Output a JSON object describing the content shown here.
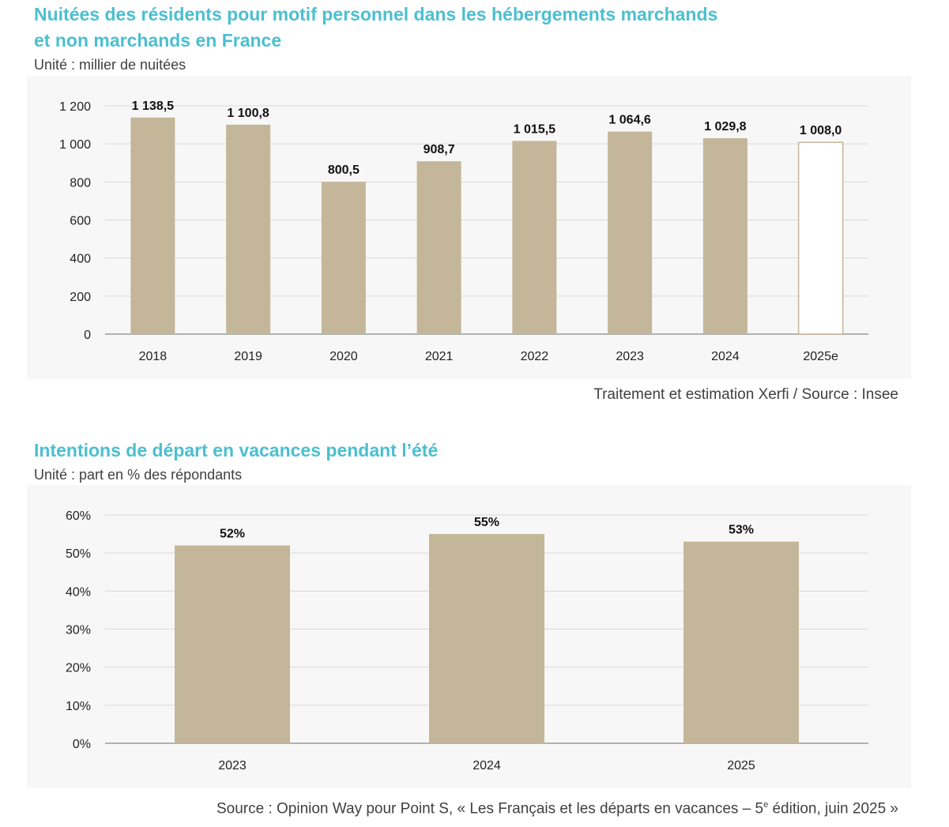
{
  "chart1": {
    "title_line1": "Nuitées des résidents pour motif personnel dans les hébergements marchands",
    "title_line2": "et non marchands en France",
    "unit": "Unité : millier de nuitées",
    "source": "Traitement et estimation Xerfi / Source : Insee"
  },
  "chart2": {
    "title": "Intentions de départ en vacances pendant l’été",
    "unit": "Unité : part en % des répondants",
    "source_before": "Source : Opinion Way pour Point S, « Les Français et les départs en vacances – 5",
    "source_sup": "e",
    "source_after": " édition, juin 2025 »"
  },
  "colors": {
    "title": "#4bbfd0",
    "bar": "#c4b698",
    "estimate_fill": "#ffffff",
    "grid": "#d9d9d9",
    "panel_bg": "#f7f7f7"
  },
  "chart_data": [
    {
      "type": "bar",
      "categories": [
        "2018",
        "2019",
        "2020",
        "2021",
        "2022",
        "2023",
        "2024",
        "2025e"
      ],
      "values": [
        1138.5,
        1100.8,
        800.5,
        908.7,
        1015.5,
        1064.6,
        1029.8,
        1008.0
      ],
      "data_labels": [
        "1 138,5",
        "1 100,8",
        "800,5",
        "908,7",
        "1 015,5",
        "1 064,6",
        "1 029,8",
        "1 008,0"
      ],
      "estimate_flags": [
        false,
        false,
        false,
        false,
        false,
        false,
        false,
        true
      ],
      "y_ticks": [
        0,
        200,
        400,
        600,
        800,
        1000,
        1200
      ],
      "y_tick_labels": [
        "0",
        "200",
        "400",
        "600",
        "800",
        "1 000",
        "1 200"
      ],
      "ylim": [
        0,
        1200
      ],
      "grid": true,
      "legend": "none"
    },
    {
      "type": "bar",
      "categories": [
        "2023",
        "2024",
        "2025"
      ],
      "values": [
        52,
        55,
        53
      ],
      "data_labels": [
        "52%",
        "55%",
        "53%"
      ],
      "y_ticks": [
        0,
        10,
        20,
        30,
        40,
        50,
        60
      ],
      "y_tick_labels": [
        "0%",
        "10%",
        "20%",
        "30%",
        "40%",
        "50%",
        "60%"
      ],
      "ylim": [
        0,
        60
      ],
      "grid": true,
      "legend": "none"
    }
  ]
}
